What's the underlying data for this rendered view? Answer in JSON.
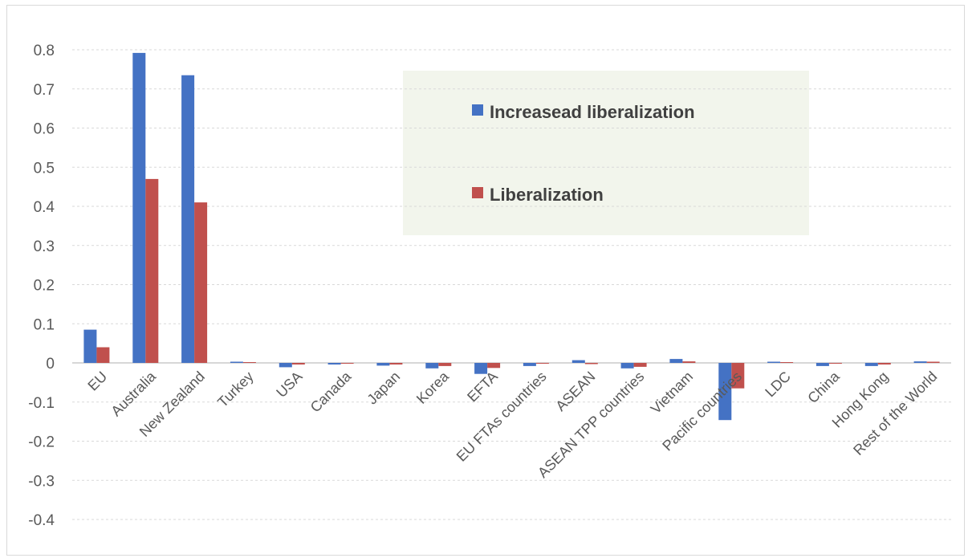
{
  "chart_data": {
    "type": "bar",
    "categories": [
      "EU",
      "Australia",
      "New Zealand",
      "Turkey",
      "USA",
      "Canada",
      "Japan",
      "Korea",
      "EFTA",
      "EU FTAs countries",
      "ASEAN",
      "ASEAN TPP countries",
      "Vietnam",
      "Pacific countries",
      "LDC",
      "China",
      "Hong Kong",
      "Rest of the World"
    ],
    "series": [
      {
        "name": "Increasead liberalization",
        "color": "#4472c4",
        "values": [
          0.085,
          0.792,
          0.735,
          0.003,
          -0.011,
          -0.004,
          -0.007,
          -0.014,
          -0.028,
          -0.008,
          0.007,
          -0.014,
          0.01,
          -0.146,
          0.003,
          -0.008,
          -0.008,
          0.004
        ]
      },
      {
        "name": "Liberalization",
        "color": "#c0504d",
        "values": [
          0.04,
          0.47,
          0.41,
          0.002,
          -0.004,
          0.0,
          -0.004,
          -0.008,
          -0.013,
          -0.002,
          -0.003,
          -0.01,
          0.004,
          -0.065,
          0.002,
          -0.002,
          -0.004,
          0.003
        ]
      }
    ],
    "ylim": [
      -0.4,
      0.8
    ],
    "yticks": [
      "-0.4",
      "-0.3",
      "-0.2",
      "-0.1",
      "0",
      "0.1",
      "0.2",
      "0.3",
      "0.4",
      "0.5",
      "0.6",
      "0.7",
      "0.8"
    ],
    "grid": true,
    "legend_position": "top-center",
    "title": "",
    "xlabel": "",
    "ylabel": ""
  }
}
